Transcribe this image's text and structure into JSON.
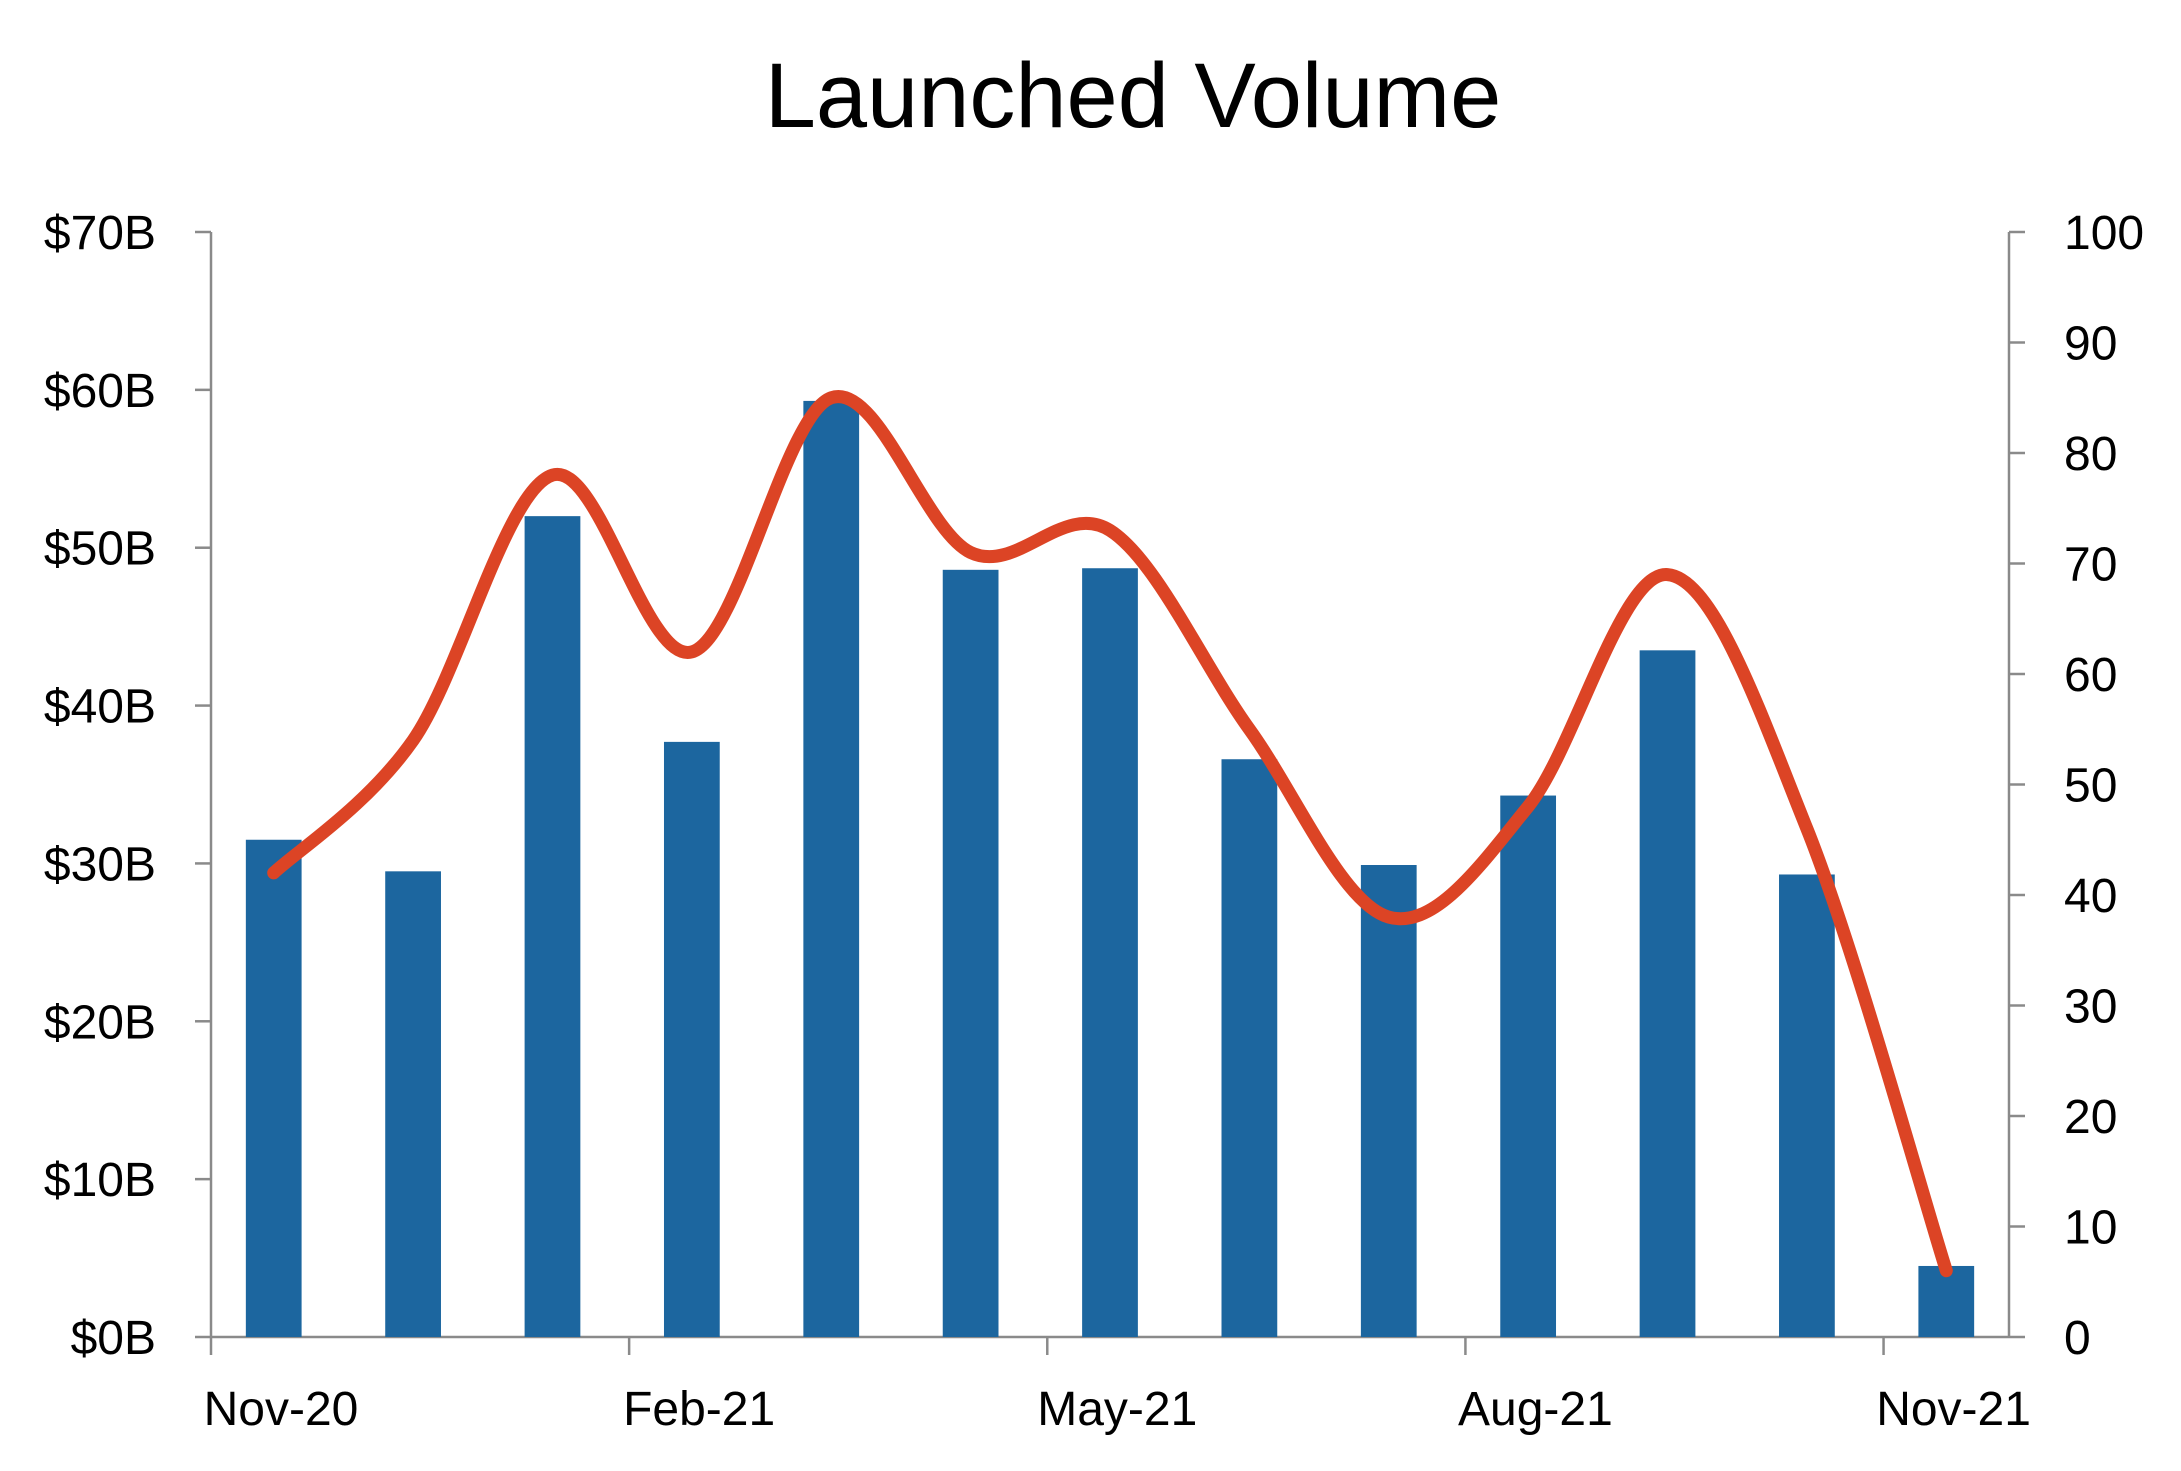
{
  "chart_data": {
    "type": "bar",
    "title": "Launched Volume",
    "x_tick_labels": [
      "Nov-20",
      "Feb-21",
      "May-21",
      "Aug-21",
      "Nov-21"
    ],
    "left_axis": {
      "tick_labels": [
        "$0B",
        "$10B",
        "$20B",
        "$30B",
        "$40B",
        "$50B",
        "$60B",
        "$70B"
      ],
      "ylim": [
        0,
        70
      ]
    },
    "right_axis": {
      "tick_labels": [
        "0",
        "10",
        "20",
        "30",
        "40",
        "50",
        "60",
        "70",
        "80",
        "90",
        "100"
      ],
      "ylim": [
        0,
        100
      ]
    },
    "series": [
      {
        "type": "bar",
        "axis": "left",
        "color": "#1c669f",
        "values": [
          31.5,
          29.5,
          52.0,
          37.7,
          59.3,
          48.6,
          48.7,
          36.6,
          29.9,
          34.3,
          43.5,
          29.3,
          4.5
        ]
      },
      {
        "type": "line",
        "axis": "right",
        "smooth": true,
        "color": "#dc4425",
        "values": [
          42,
          54,
          78,
          62,
          85,
          71,
          73,
          55,
          38,
          48,
          69,
          46,
          6
        ]
      }
    ],
    "grid": false,
    "legend": "none"
  }
}
